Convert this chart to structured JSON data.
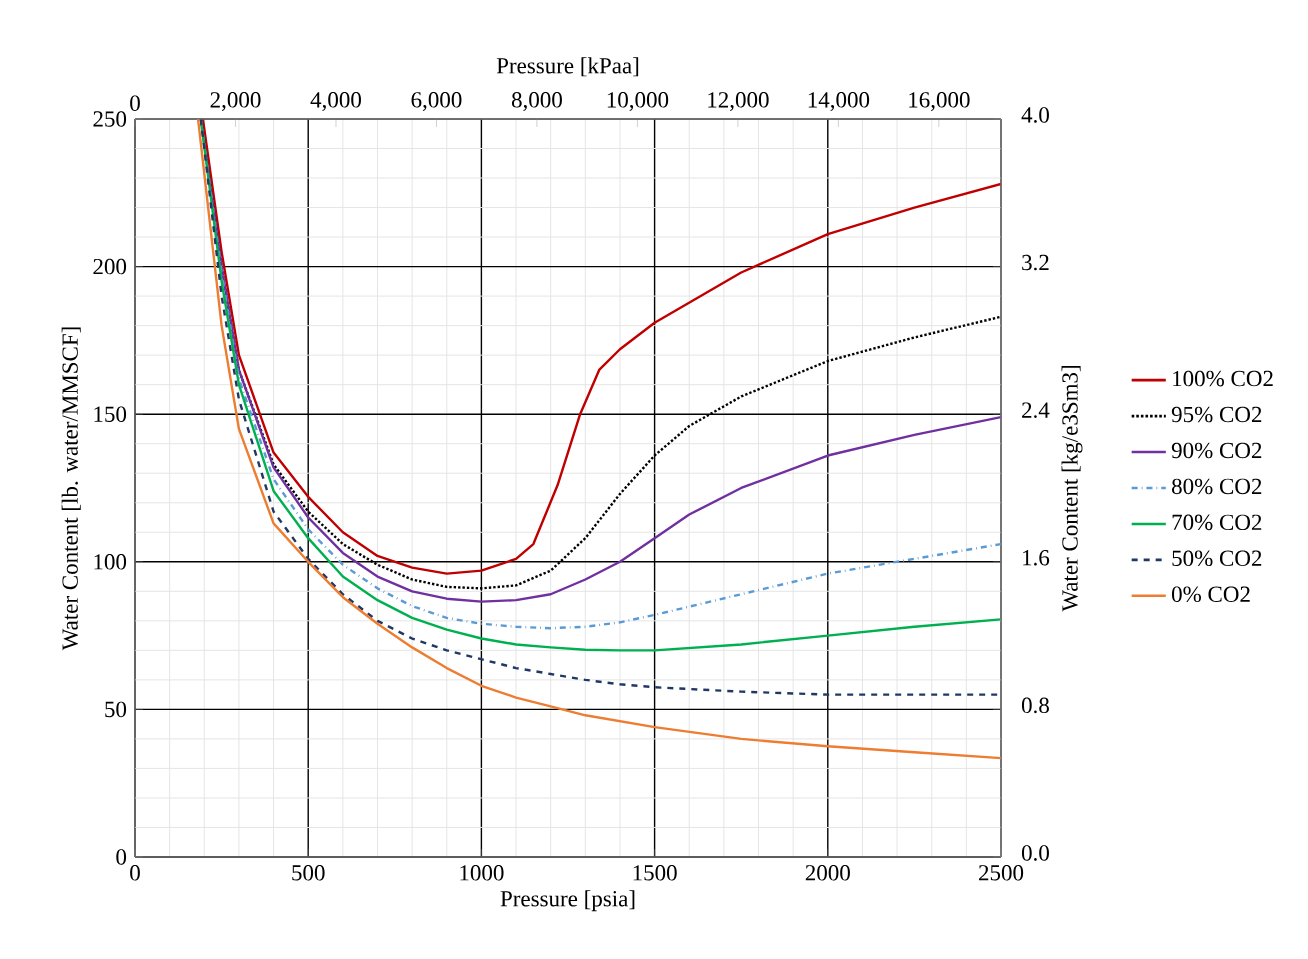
{
  "chart_data": {
    "type": "line",
    "xlabel": "Pressure [psia]",
    "ylabel": "Water Content [lb. water/MMSCF]",
    "x2label": "Pressure [kPaa]",
    "y2label": "Water Content [kg/e3Sm3]",
    "xlim": [
      0,
      2500
    ],
    "xticks": [
      0,
      500,
      1000,
      1500,
      2000,
      2500
    ],
    "ylim": [
      0,
      250
    ],
    "yticks": [
      0,
      50,
      100,
      150,
      200,
      250
    ],
    "x2lim": [
      0,
      17237
    ],
    "x2ticks": [
      {
        "value": 0,
        "label": "0"
      },
      {
        "value": 2000,
        "label": "2,000"
      },
      {
        "value": 4000,
        "label": "4,000"
      },
      {
        "value": 6000,
        "label": "6,000"
      },
      {
        "value": 8000,
        "label": "8,000"
      },
      {
        "value": 10000,
        "label": "10,000"
      },
      {
        "value": 12000,
        "label": "12,000"
      },
      {
        "value": 14000,
        "label": "14,000"
      },
      {
        "value": 16000,
        "label": "16,000"
      }
    ],
    "y2lim": [
      0,
      4.0
    ],
    "y2ticks": [
      {
        "value": 0,
        "label": "0.0"
      },
      {
        "value": 0.8,
        "label": "0.8"
      },
      {
        "value": 1.6,
        "label": "1.6"
      },
      {
        "value": 2.4,
        "label": "2.4"
      },
      {
        "value": 3.2,
        "label": "3.2"
      },
      {
        "value": 4.0,
        "label": "4.0"
      }
    ],
    "grid": true,
    "legend": "right",
    "marker": "none",
    "series": [
      {
        "name": "100% CO2",
        "color": "#c00000",
        "line_style": "solid",
        "x": [
          196,
          250,
          300,
          400,
          500,
          600,
          700,
          800,
          900,
          1000,
          1100,
          1150,
          1220,
          1285,
          1340,
          1400,
          1500,
          1750,
          2000,
          2250,
          2500
        ],
        "values": [
          250,
          205,
          170,
          137,
          122,
          110,
          102,
          98,
          96,
          97,
          101,
          106,
          126,
          150,
          165,
          172,
          181,
          198,
          211,
          220,
          228
        ]
      },
      {
        "name": "95% CO2",
        "color": "#000000",
        "line_style": "dotted",
        "x": [
          190,
          250,
          300,
          400,
          500,
          600,
          700,
          800,
          900,
          1000,
          1100,
          1200,
          1300,
          1400,
          1500,
          1600,
          1750,
          2000,
          2250,
          2500
        ],
        "values": [
          250,
          200,
          165,
          133,
          117,
          106,
          99,
          94,
          91.5,
          91,
          92,
          97,
          108,
          123,
          136,
          146,
          156,
          168,
          176,
          183
        ]
      },
      {
        "name": "90% CO2",
        "color": "#7030a0",
        "line_style": "solid",
        "x": [
          190,
          250,
          300,
          400,
          500,
          600,
          700,
          800,
          900,
          1000,
          1100,
          1200,
          1300,
          1400,
          1500,
          1600,
          1750,
          2000,
          2250,
          2500
        ],
        "values": [
          250,
          200,
          165,
          132,
          115,
          103,
          95,
          90,
          87.5,
          86.5,
          87,
          89,
          94,
          100,
          108,
          116,
          125,
          136,
          143,
          149
        ]
      },
      {
        "name": "80% CO2",
        "color": "#5b9bd5",
        "line_style": "dashdot",
        "x": [
          190,
          250,
          300,
          400,
          500,
          600,
          700,
          800,
          900,
          1000,
          1100,
          1200,
          1300,
          1400,
          1500,
          1750,
          2000,
          2250,
          2500
        ],
        "values": [
          250,
          198,
          162,
          128,
          111,
          99,
          91,
          85,
          81,
          79,
          78,
          77.5,
          78,
          79.5,
          82,
          89,
          96,
          101,
          106
        ]
      },
      {
        "name": "70% CO2",
        "color": "#00b050",
        "line_style": "solid",
        "x": [
          190,
          250,
          300,
          400,
          500,
          600,
          700,
          800,
          900,
          1000,
          1100,
          1200,
          1300,
          1400,
          1500,
          1750,
          2000,
          2250,
          2500
        ],
        "values": [
          250,
          195,
          160,
          124,
          108,
          95,
          87,
          81,
          77,
          74,
          72,
          71,
          70.2,
          70,
          70,
          72,
          75,
          78,
          80.5
        ]
      },
      {
        "name": "50% CO2",
        "color": "#1f3864",
        "line_style": "dashed",
        "x": [
          190,
          250,
          300,
          400,
          500,
          600,
          700,
          800,
          900,
          1000,
          1100,
          1200,
          1300,
          1400,
          1500,
          1750,
          2000,
          2250,
          2500
        ],
        "values": [
          250,
          190,
          155,
          117,
          101,
          89,
          80,
          74,
          70,
          67,
          64,
          62,
          60,
          58.5,
          57.5,
          56,
          55,
          55,
          55
        ]
      },
      {
        "name": "0% CO2",
        "color": "#ed7d31",
        "line_style": "solid",
        "x": [
          182,
          250,
          300,
          400,
          500,
          600,
          700,
          800,
          900,
          1000,
          1100,
          1200,
          1300,
          1400,
          1500,
          1750,
          2000,
          2250,
          2500
        ],
        "values": [
          250,
          180,
          145,
          113,
          100,
          88,
          79,
          71,
          64,
          58,
          54,
          51,
          48,
          46,
          44,
          40,
          37.5,
          35.5,
          33.5
        ]
      }
    ]
  }
}
